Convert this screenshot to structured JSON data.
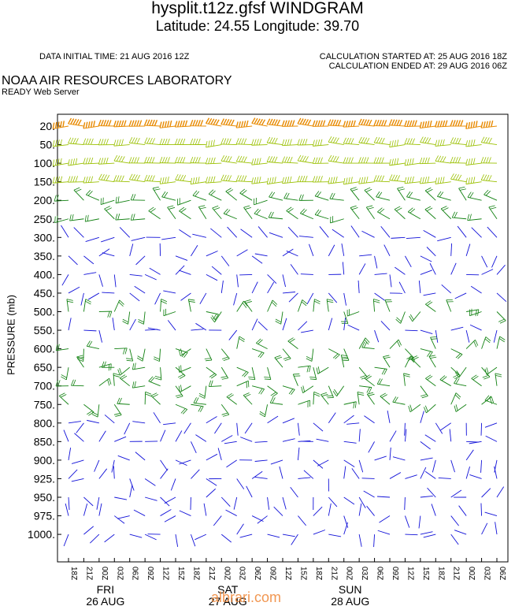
{
  "title": "hysplit.t12z.gfsf WINDGRAM",
  "subtitle": "Latitude: 24.55 Longitude:  39.70",
  "data_initial_time": "DATA INITIAL TIME: 21 AUG 2016 12Z",
  "calculation_started": "CALCULATION STARTED AT: 25 AUG 2016 18Z",
  "calculation_ended": "CALCULATION ENDED AT: 29 AUG 2016 06Z",
  "organization": "NOAA AIR RESOURCES LABORATORY",
  "server": "READY Web Server",
  "watermark": "albrari.com",
  "chart_data": {
    "type": "wind barbs (windgram)",
    "ylabel": "PRESSURE (mb)",
    "pressure_levels": [
      "20.",
      "50.",
      "100.",
      "150.",
      "200.",
      "250.",
      "300.",
      "350.",
      "400.",
      "450.",
      "500.",
      "550.",
      "600.",
      "650.",
      "700.",
      "750.",
      "800.",
      "850.",
      "900.",
      "925.",
      "950.",
      "975.",
      "1000."
    ],
    "time_labels": [
      "18Z",
      "21Z",
      "00Z",
      "03Z",
      "06Z",
      "09Z",
      "12Z",
      "15Z",
      "18Z",
      "21Z",
      "00Z",
      "03Z",
      "06Z",
      "09Z",
      "12Z",
      "15Z",
      "18Z",
      "21Z",
      "00Z",
      "03Z",
      "06Z",
      "09Z",
      "12Z",
      "15Z",
      "18Z",
      "21Z",
      "00Z",
      "03Z",
      "06Z"
    ],
    "day_labels": [
      {
        "day": "FRI",
        "date": "26 AUG",
        "tick_index": 2
      },
      {
        "day": "SAT",
        "date": "27 AUG",
        "tick_index": 10
      },
      {
        "day": "SUN",
        "date": "28 AUG",
        "tick_index": 18
      }
    ],
    "colors": {
      "slow": "#1010d8",
      "moderate": "#108010",
      "fast": "#9ac000",
      "very_fast": "#e88a00",
      "axis": "#000000"
    },
    "speed_class_by_level": [
      "very_fast",
      "fast",
      "fast",
      "fast",
      "moderate",
      "moderate",
      "slow",
      "slow",
      "slow",
      "slow",
      "moderate",
      "slow",
      "moderate",
      "moderate",
      "moderate",
      "moderate",
      "slow",
      "slow",
      "slow",
      "slow",
      "slow",
      "slow",
      "slow"
    ]
  }
}
